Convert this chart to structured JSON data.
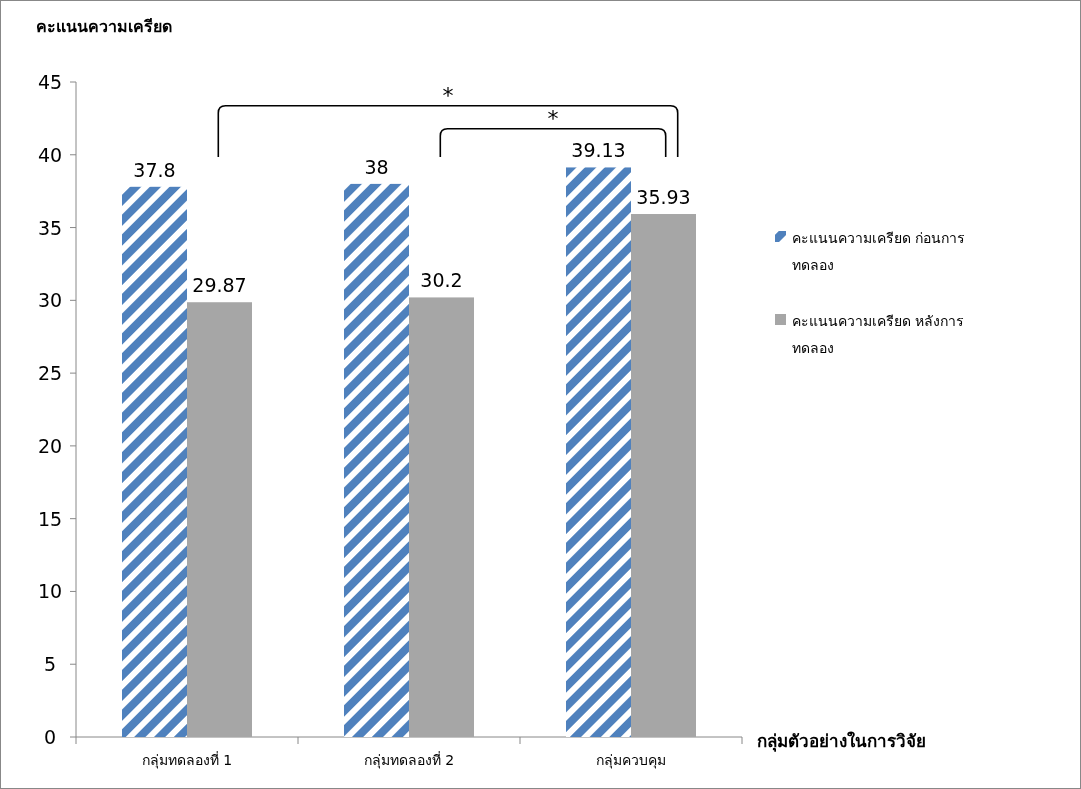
{
  "chart_data": {
    "type": "bar",
    "ylabel": "คะแนนความเครียด",
    "xlabel": "กลุ่มตัวอย่างในการวิจัย",
    "categories": [
      "กลุ่มทดลองที่ 1",
      "กลุ่มทดลองที่ 2",
      "กลุ่มควบคุม"
    ],
    "series": [
      {
        "name": "คะแนนความเครียด ก่อนการทดลอง",
        "color": "#4f81bd",
        "values": [
          37.8,
          38,
          39.13
        ]
      },
      {
        "name": "คะแนนความเครียด หลังการทดลอง",
        "color": "#a6a6a6",
        "values": [
          29.87,
          30.2,
          35.93
        ]
      }
    ],
    "ylim": [
      0,
      45
    ],
    "yticks": [
      0,
      5,
      10,
      15,
      20,
      25,
      30,
      35,
      40,
      45
    ],
    "data_labels": true,
    "legend": "right",
    "grid": false,
    "annotations": [
      "*",
      "*"
    ]
  }
}
